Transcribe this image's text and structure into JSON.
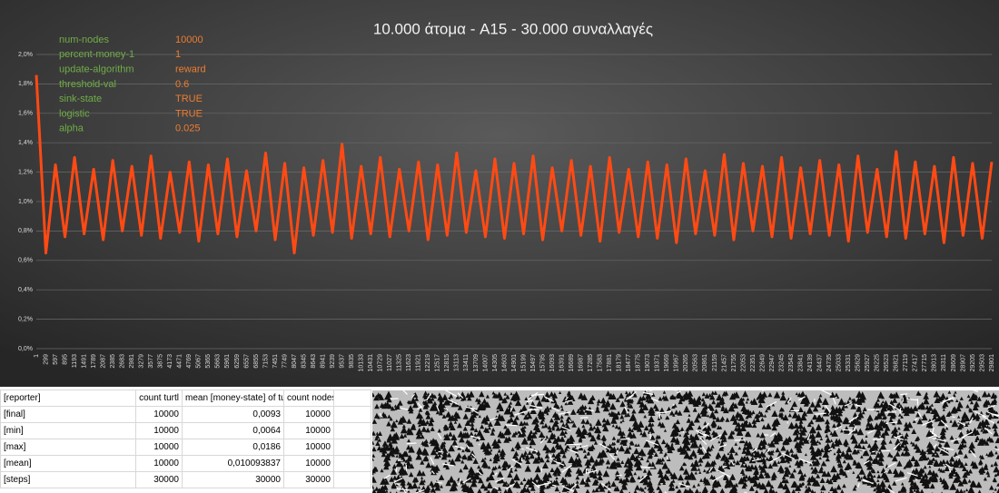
{
  "chart_data": {
    "type": "line",
    "title": "10.000 άτομα - A15 - 30.000 συναλλαγές",
    "parameters": [
      {
        "name": "num-nodes",
        "value": "10000"
      },
      {
        "name": "percent-money-1",
        "value": "1"
      },
      {
        "name": "update-algorithm",
        "value": "reward"
      },
      {
        "name": "threshold-val",
        "value": "0.6"
      },
      {
        "name": "sink-state",
        "value": "TRUE"
      },
      {
        "name": "logistic",
        "value": "TRUE"
      },
      {
        "name": "alpha",
        "value": "0.025"
      }
    ],
    "x": [
      1,
      299,
      597,
      895,
      1193,
      1491,
      1789,
      2087,
      2385,
      2683,
      2981,
      3279,
      3577,
      3875,
      4173,
      4471,
      4769,
      5067,
      5365,
      5663,
      5961,
      6259,
      6557,
      6855,
      7153,
      7451,
      7749,
      8047,
      8345,
      8643,
      8941,
      9239,
      9537,
      9835,
      10133,
      10431,
      10729,
      11027,
      11325,
      11623,
      11921,
      12219,
      12517,
      12815,
      13113,
      13411,
      13709,
      14007,
      14305,
      14603,
      14901,
      15199,
      15497,
      15795,
      16093,
      16391,
      16689,
      16987,
      17285,
      17583,
      17881,
      18179,
      18477,
      18775,
      19073,
      19371,
      19669,
      19967,
      20265,
      20563,
      20861,
      21159,
      21457,
      21755,
      22053,
      22351,
      22649,
      22947,
      23245,
      23543,
      23841,
      24139,
      24437,
      24735,
      25033,
      25331,
      25629,
      25927,
      26225,
      26523,
      26821,
      27119,
      27417,
      27715,
      28013,
      28311,
      28609,
      28907,
      29205,
      29503,
      29801
    ],
    "series": [
      {
        "color": "#ff4a14",
        "values": [
          1.86,
          0.65,
          1.25,
          0.76,
          1.3,
          0.78,
          1.22,
          0.74,
          1.28,
          0.8,
          1.24,
          0.77,
          1.31,
          0.75,
          1.2,
          0.79,
          1.27,
          0.73,
          1.25,
          0.78,
          1.29,
          0.76,
          1.21,
          0.8,
          1.33,
          0.74,
          1.26,
          0.65,
          1.23,
          0.77,
          1.28,
          0.79,
          1.39,
          0.75,
          1.24,
          0.78,
          1.3,
          0.76,
          1.22,
          0.8,
          1.27,
          0.74,
          1.25,
          0.77,
          1.33,
          0.79,
          1.21,
          0.76,
          1.29,
          0.75,
          1.26,
          0.78,
          1.31,
          0.74,
          1.23,
          0.8,
          1.28,
          0.77,
          1.24,
          0.73,
          1.3,
          0.79,
          1.22,
          0.76,
          1.27,
          0.75,
          1.25,
          0.72,
          1.29,
          0.78,
          1.21,
          0.77,
          1.32,
          0.74,
          1.26,
          0.8,
          1.24,
          0.76,
          1.3,
          0.75,
          1.23,
          0.78,
          1.28,
          0.77,
          1.25,
          0.73,
          1.31,
          0.79,
          1.22,
          0.76,
          1.34,
          0.75,
          1.27,
          0.78,
          1.24,
          0.72,
          1.3,
          0.77,
          1.26,
          0.75,
          1.27
        ]
      }
    ],
    "xlim": [
      1,
      29801
    ],
    "ylim": [
      0,
      2
    ],
    "yticks": [
      {
        "value": 0,
        "label": "0,0%"
      },
      {
        "value": 0.2,
        "label": "0,2%"
      },
      {
        "value": 0.4,
        "label": "0,4%"
      },
      {
        "value": 0.6,
        "label": "0,6%"
      },
      {
        "value": 0.8,
        "label": "0,8%"
      },
      {
        "value": 1,
        "label": "1,0%"
      },
      {
        "value": 1.2,
        "label": "1,2%"
      },
      {
        "value": 1.4,
        "label": "1,4%"
      },
      {
        "value": 1.6,
        "label": "1,6%"
      },
      {
        "value": 1.8,
        "label": "1,8%"
      },
      {
        "value": 2,
        "label": "2,0%"
      }
    ],
    "grid": true
  },
  "table": {
    "header": [
      "[reporter]",
      "count turtl",
      "mean [money-state] of tu",
      "count nodes"
    ],
    "rows": [
      [
        "[final]",
        "10000",
        "0,0093",
        "10000"
      ],
      [
        "[min]",
        "10000",
        "0,0064",
        "10000"
      ],
      [
        "[max]",
        "10000",
        "0,0186",
        "10000"
      ],
      [
        "[mean]",
        "10000",
        "0,010093837",
        "10000"
      ],
      [
        "[steps]",
        "30000",
        "30000",
        "30000"
      ]
    ]
  }
}
